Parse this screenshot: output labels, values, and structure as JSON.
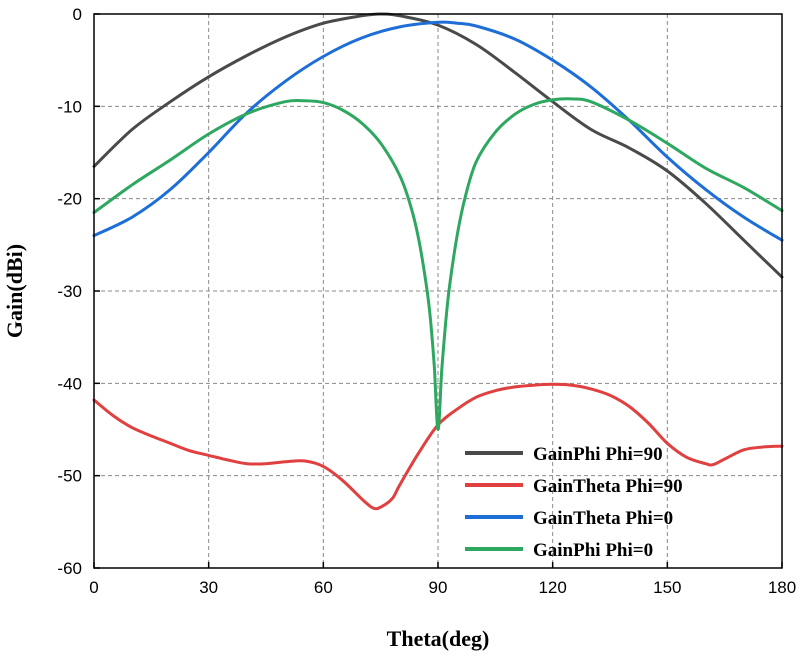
{
  "chart_data": {
    "type": "line",
    "title": "",
    "xlabel": "Theta(deg)",
    "ylabel": "Gain(dBi)",
    "xlim": [
      0,
      180
    ],
    "ylim": [
      -60,
      0
    ],
    "grid": true,
    "legend_position": "bottom-right",
    "x_ticks": [
      0,
      30,
      60,
      90,
      120,
      150,
      180
    ],
    "y_ticks": [
      0,
      -10,
      -20,
      -30,
      -40,
      -50,
      -60
    ],
    "series": [
      {
        "name": "GainPhi Phi=90",
        "color": "#4a4a4a",
        "x": [
          0,
          10,
          20,
          30,
          40,
          50,
          60,
          70,
          75,
          80,
          90,
          100,
          110,
          120,
          130,
          140,
          150,
          160,
          170,
          180
        ],
        "y": [
          -16.5,
          -12.5,
          -9.5,
          -6.8,
          -4.5,
          -2.5,
          -1.0,
          -0.2,
          0,
          -0.2,
          -1.2,
          -3.3,
          -6.3,
          -9.5,
          -12.5,
          -14.5,
          -17.0,
          -20.5,
          -24.5,
          -28.5
        ]
      },
      {
        "name": "GainTheta Phi=90",
        "color": "#e04040",
        "x": [
          0,
          5,
          10,
          15,
          20,
          25,
          30,
          35,
          40,
          45,
          50,
          55,
          60,
          65,
          70,
          73,
          75,
          78,
          80,
          85,
          90,
          95,
          100,
          105,
          110,
          115,
          120,
          125,
          130,
          135,
          140,
          145,
          150,
          155,
          160,
          162,
          165,
          170,
          175,
          180
        ],
        "y": [
          -41.8,
          -43.5,
          -44.8,
          -45.7,
          -46.5,
          -47.3,
          -47.8,
          -48.3,
          -48.7,
          -48.7,
          -48.5,
          -48.4,
          -49.0,
          -50.5,
          -52.5,
          -53.5,
          -53.4,
          -52.5,
          -51.0,
          -47.5,
          -44.5,
          -42.8,
          -41.5,
          -40.8,
          -40.4,
          -40.2,
          -40.1,
          -40.2,
          -40.6,
          -41.3,
          -42.5,
          -44.3,
          -46.5,
          -48.0,
          -48.7,
          -48.8,
          -48.2,
          -47.2,
          -46.9,
          -46.8
        ]
      },
      {
        "name": "GainTheta Phi=0",
        "color": "#1e6ed8",
        "x": [
          0,
          10,
          20,
          30,
          40,
          50,
          60,
          70,
          80,
          90,
          95,
          100,
          110,
          120,
          130,
          140,
          150,
          160,
          170,
          180
        ],
        "y": [
          -24.0,
          -22.0,
          -19.0,
          -15.0,
          -10.7,
          -7.3,
          -4.6,
          -2.6,
          -1.4,
          -0.9,
          -1.0,
          -1.3,
          -2.7,
          -5.0,
          -7.9,
          -11.5,
          -15.5,
          -19.0,
          -22.0,
          -24.5
        ]
      },
      {
        "name": "GainPhi Phi=0",
        "color": "#2ea860",
        "x": [
          0,
          10,
          20,
          30,
          40,
          50,
          55,
          60,
          65,
          70,
          75,
          80,
          83,
          85,
          87,
          88,
          89,
          90,
          91,
          92,
          93,
          95,
          97,
          100,
          105,
          110,
          115,
          120,
          125,
          130,
          140,
          150,
          160,
          170,
          180
        ],
        "y": [
          -21.5,
          -18.5,
          -15.8,
          -13.0,
          -10.8,
          -9.5,
          -9.4,
          -9.6,
          -10.4,
          -11.8,
          -14.0,
          -17.5,
          -21.0,
          -24.5,
          -29.5,
          -33.0,
          -38.0,
          -45.0,
          -38.5,
          -33.5,
          -29.5,
          -24.0,
          -20.0,
          -16.0,
          -12.8,
          -10.9,
          -9.8,
          -9.3,
          -9.2,
          -9.5,
          -11.5,
          -14.0,
          -16.7,
          -18.8,
          -21.3
        ]
      }
    ]
  }
}
